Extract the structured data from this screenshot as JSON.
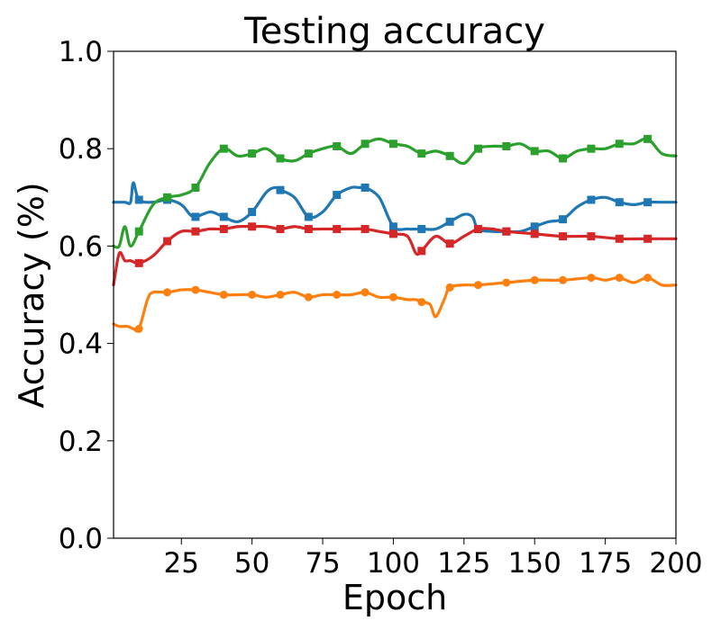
{
  "chart_data": {
    "type": "line",
    "title": "Testing accuracy",
    "xlabel": "Epoch",
    "ylabel": "Accuracy (%)",
    "xlim": [
      1,
      200
    ],
    "ylim": [
      0.0,
      1.0
    ],
    "xticks": [
      "25",
      "50",
      "75",
      "100",
      "125",
      "150",
      "175",
      "200"
    ],
    "yticks": [
      "0.0",
      "0.2",
      "0.4",
      "0.6",
      "0.8",
      "1.0"
    ],
    "grid": false,
    "series": [
      {
        "color": "#1f77b4",
        "marker": "square",
        "markers_every": 10,
        "x": [
          1,
          5,
          7,
          8,
          10,
          15,
          20,
          25,
          28,
          30,
          35,
          38,
          40,
          45,
          50,
          55,
          58,
          60,
          65,
          70,
          75,
          80,
          85,
          88,
          90,
          95,
          100,
          105,
          110,
          115,
          120,
          125,
          128,
          130,
          135,
          140,
          145,
          150,
          155,
          160,
          165,
          170,
          175,
          180,
          185,
          190,
          195,
          200
        ],
        "y": [
          0.69,
          0.69,
          0.69,
          0.73,
          0.695,
          0.69,
          0.695,
          0.685,
          0.665,
          0.66,
          0.67,
          0.665,
          0.66,
          0.65,
          0.67,
          0.71,
          0.72,
          0.715,
          0.7,
          0.66,
          0.67,
          0.705,
          0.72,
          0.72,
          0.72,
          0.7,
          0.64,
          0.635,
          0.635,
          0.635,
          0.65,
          0.665,
          0.66,
          0.635,
          0.63,
          0.63,
          0.63,
          0.64,
          0.65,
          0.655,
          0.68,
          0.695,
          0.7,
          0.69,
          0.685,
          0.69,
          0.69,
          0.69
        ]
      },
      {
        "color": "#ff7f0e",
        "marker": "circle",
        "markers_every": 10,
        "x": [
          1,
          3,
          6,
          8,
          10,
          13,
          15,
          20,
          25,
          30,
          35,
          40,
          45,
          50,
          55,
          60,
          65,
          70,
          75,
          80,
          85,
          90,
          95,
          100,
          105,
          108,
          110,
          113,
          115,
          118,
          120,
          125,
          130,
          140,
          150,
          160,
          170,
          175,
          180,
          185,
          190,
          195,
          200
        ],
        "y": [
          0.44,
          0.435,
          0.435,
          0.43,
          0.43,
          0.49,
          0.505,
          0.505,
          0.51,
          0.51,
          0.505,
          0.5,
          0.5,
          0.5,
          0.495,
          0.5,
          0.505,
          0.495,
          0.5,
          0.5,
          0.5,
          0.505,
          0.495,
          0.495,
          0.49,
          0.49,
          0.485,
          0.48,
          0.455,
          0.49,
          0.515,
          0.52,
          0.52,
          0.525,
          0.53,
          0.53,
          0.535,
          0.53,
          0.535,
          0.525,
          0.535,
          0.52,
          0.52
        ]
      },
      {
        "color": "#2ca02c",
        "marker": "square",
        "markers_every": 10,
        "x": [
          1,
          3,
          5,
          7,
          10,
          15,
          20,
          25,
          30,
          35,
          40,
          45,
          50,
          55,
          60,
          65,
          70,
          75,
          80,
          85,
          90,
          95,
          100,
          105,
          110,
          115,
          120,
          125,
          130,
          135,
          140,
          145,
          150,
          155,
          160,
          165,
          170,
          175,
          180,
          185,
          190,
          195,
          200
        ],
        "y": [
          0.6,
          0.6,
          0.64,
          0.6,
          0.63,
          0.685,
          0.7,
          0.705,
          0.72,
          0.77,
          0.8,
          0.785,
          0.79,
          0.8,
          0.78,
          0.775,
          0.79,
          0.8,
          0.805,
          0.79,
          0.81,
          0.82,
          0.81,
          0.805,
          0.79,
          0.795,
          0.785,
          0.77,
          0.8,
          0.805,
          0.805,
          0.81,
          0.795,
          0.795,
          0.78,
          0.795,
          0.8,
          0.8,
          0.81,
          0.81,
          0.82,
          0.79,
          0.785
        ]
      },
      {
        "color": "#d62728",
        "marker": "square",
        "markers_every": 10,
        "x": [
          1,
          3,
          5,
          7,
          10,
          15,
          20,
          25,
          30,
          35,
          40,
          45,
          50,
          55,
          60,
          65,
          70,
          75,
          80,
          85,
          90,
          95,
          100,
          105,
          108,
          110,
          115,
          120,
          125,
          130,
          135,
          140,
          150,
          160,
          170,
          180,
          190,
          200
        ],
        "y": [
          0.52,
          0.585,
          0.57,
          0.57,
          0.565,
          0.58,
          0.61,
          0.63,
          0.63,
          0.635,
          0.635,
          0.64,
          0.64,
          0.64,
          0.635,
          0.64,
          0.635,
          0.635,
          0.635,
          0.635,
          0.635,
          0.63,
          0.625,
          0.62,
          0.585,
          0.59,
          0.62,
          0.605,
          0.62,
          0.635,
          0.635,
          0.63,
          0.625,
          0.62,
          0.62,
          0.615,
          0.615,
          0.615
        ]
      }
    ]
  }
}
